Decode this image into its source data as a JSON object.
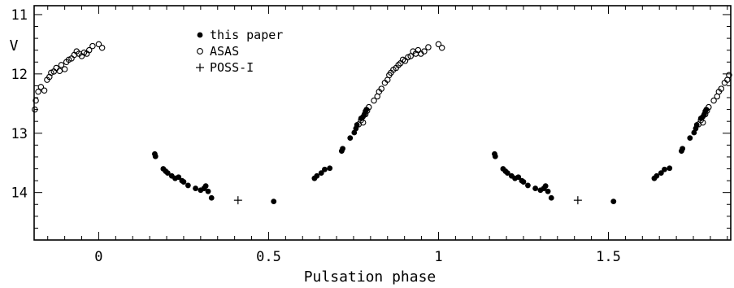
{
  "chart_data": {
    "type": "scatter",
    "title": "",
    "xlabel": "Pulsation phase",
    "ylabel": "V",
    "xlim": [
      -0.19,
      1.86
    ],
    "ylim": [
      10.85,
      14.8
    ],
    "y_inverted": true,
    "x_ticks": [
      0,
      0.5,
      1,
      1.5
    ],
    "x_tick_labels": [
      "0",
      "0.5",
      "1",
      "1.5"
    ],
    "y_ticks": [
      11,
      12,
      13,
      14
    ],
    "y_tick_labels": [
      "11",
      "12",
      "13",
      "14"
    ],
    "x_minor_step": 0.05,
    "y_minor_step": 0.2,
    "grid": false,
    "legend_position": "top-center",
    "legend": [
      {
        "label": "this paper",
        "marker": "filled-circle"
      },
      {
        "label": "ASAS",
        "marker": "open-circle"
      },
      {
        "label": "POSS-I",
        "marker": "plus"
      }
    ],
    "series": [
      {
        "name": "this paper",
        "marker": "filled-circle",
        "points": [
          {
            "x": 0.165,
            "y": 13.35
          },
          {
            "x": 0.167,
            "y": 13.39
          },
          {
            "x": 0.19,
            "y": 13.6
          },
          {
            "x": 0.197,
            "y": 13.64
          },
          {
            "x": 0.203,
            "y": 13.67
          },
          {
            "x": 0.215,
            "y": 13.72
          },
          {
            "x": 0.225,
            "y": 13.76
          },
          {
            "x": 0.235,
            "y": 13.74
          },
          {
            "x": 0.245,
            "y": 13.8
          },
          {
            "x": 0.25,
            "y": 13.82
          },
          {
            "x": 0.263,
            "y": 13.88
          },
          {
            "x": 0.285,
            "y": 13.93
          },
          {
            "x": 0.3,
            "y": 13.96
          },
          {
            "x": 0.31,
            "y": 13.93
          },
          {
            "x": 0.315,
            "y": 13.89
          },
          {
            "x": 0.322,
            "y": 13.98
          },
          {
            "x": 0.332,
            "y": 14.09
          },
          {
            "x": 0.515,
            "y": 14.15
          },
          {
            "x": 0.635,
            "y": 13.76
          },
          {
            "x": 0.642,
            "y": 13.72
          },
          {
            "x": 0.655,
            "y": 13.67
          },
          {
            "x": 0.665,
            "y": 13.61
          },
          {
            "x": 0.68,
            "y": 13.59
          },
          {
            "x": 0.715,
            "y": 13.3
          },
          {
            "x": 0.718,
            "y": 13.26
          },
          {
            "x": 0.74,
            "y": 13.08
          },
          {
            "x": 0.752,
            "y": 12.99
          },
          {
            "x": 0.757,
            "y": 12.92
          },
          {
            "x": 0.76,
            "y": 12.86
          },
          {
            "x": 0.772,
            "y": 12.75
          },
          {
            "x": 0.778,
            "y": 12.72
          },
          {
            "x": 0.782,
            "y": 12.68
          },
          {
            "x": 0.785,
            "y": 12.63
          },
          {
            "x": 0.788,
            "y": 12.6
          },
          {
            "x": 1.165,
            "y": 13.35
          },
          {
            "x": 1.167,
            "y": 13.39
          },
          {
            "x": 1.19,
            "y": 13.6
          },
          {
            "x": 1.197,
            "y": 13.64
          },
          {
            "x": 1.203,
            "y": 13.67
          },
          {
            "x": 1.215,
            "y": 13.72
          },
          {
            "x": 1.225,
            "y": 13.76
          },
          {
            "x": 1.235,
            "y": 13.74
          },
          {
            "x": 1.245,
            "y": 13.8
          },
          {
            "x": 1.25,
            "y": 13.82
          },
          {
            "x": 1.263,
            "y": 13.88
          },
          {
            "x": 1.285,
            "y": 13.93
          },
          {
            "x": 1.3,
            "y": 13.96
          },
          {
            "x": 1.31,
            "y": 13.93
          },
          {
            "x": 1.315,
            "y": 13.89
          },
          {
            "x": 1.322,
            "y": 13.98
          },
          {
            "x": 1.332,
            "y": 14.09
          },
          {
            "x": 1.515,
            "y": 14.15
          },
          {
            "x": 1.635,
            "y": 13.76
          },
          {
            "x": 1.642,
            "y": 13.72
          },
          {
            "x": 1.655,
            "y": 13.67
          },
          {
            "x": 1.665,
            "y": 13.61
          },
          {
            "x": 1.68,
            "y": 13.59
          },
          {
            "x": 1.715,
            "y": 13.3
          },
          {
            "x": 1.718,
            "y": 13.26
          },
          {
            "x": 1.74,
            "y": 13.08
          },
          {
            "x": 1.752,
            "y": 12.99
          },
          {
            "x": 1.757,
            "y": 12.92
          },
          {
            "x": 1.76,
            "y": 12.86
          },
          {
            "x": 1.772,
            "y": 12.75
          },
          {
            "x": 1.778,
            "y": 12.72
          },
          {
            "x": 1.782,
            "y": 12.68
          },
          {
            "x": 1.785,
            "y": 12.63
          },
          {
            "x": 1.788,
            "y": 12.6
          }
        ]
      },
      {
        "name": "ASAS",
        "marker": "open-circle",
        "points": [
          {
            "x": -0.188,
            "y": 12.6
          },
          {
            "x": -0.185,
            "y": 12.45
          },
          {
            "x": -0.178,
            "y": 12.3
          },
          {
            "x": -0.17,
            "y": 12.22
          },
          {
            "x": -0.16,
            "y": 12.28
          },
          {
            "x": -0.152,
            "y": 12.1
          },
          {
            "x": -0.145,
            "y": 12.05
          },
          {
            "x": -0.14,
            "y": 11.98
          },
          {
            "x": -0.132,
            "y": 11.96
          },
          {
            "x": -0.125,
            "y": 11.9
          },
          {
            "x": -0.115,
            "y": 11.95
          },
          {
            "x": -0.11,
            "y": 11.85
          },
          {
            "x": -0.1,
            "y": 11.92
          },
          {
            "x": -0.095,
            "y": 11.8
          },
          {
            "x": -0.088,
            "y": 11.76
          },
          {
            "x": -0.08,
            "y": 11.74
          },
          {
            "x": -0.072,
            "y": 11.68
          },
          {
            "x": -0.065,
            "y": 11.62
          },
          {
            "x": -0.058,
            "y": 11.66
          },
          {
            "x": -0.05,
            "y": 11.7
          },
          {
            "x": -0.043,
            "y": 11.64
          },
          {
            "x": -0.035,
            "y": 11.66
          },
          {
            "x": -0.028,
            "y": 11.6
          },
          {
            "x": -0.018,
            "y": 11.53
          },
          {
            "x": 0.0,
            "y": 11.5
          },
          {
            "x": 0.01,
            "y": 11.56
          },
          {
            "x": 0.765,
            "y": 12.85
          },
          {
            "x": 0.772,
            "y": 12.78
          },
          {
            "x": 0.778,
            "y": 12.82
          },
          {
            "x": 0.785,
            "y": 12.68
          },
          {
            "x": 0.79,
            "y": 12.62
          },
          {
            "x": 0.795,
            "y": 12.56
          },
          {
            "x": 0.81,
            "y": 12.45
          },
          {
            "x": 0.82,
            "y": 12.38
          },
          {
            "x": 0.825,
            "y": 12.3
          },
          {
            "x": 0.832,
            "y": 12.25
          },
          {
            "x": 0.842,
            "y": 12.15
          },
          {
            "x": 0.85,
            "y": 12.1
          },
          {
            "x": 0.855,
            "y": 12.02
          },
          {
            "x": 0.86,
            "y": 11.98
          },
          {
            "x": 0.867,
            "y": 11.93
          },
          {
            "x": 0.875,
            "y": 11.9
          },
          {
            "x": 0.882,
            "y": 11.85
          },
          {
            "x": 0.888,
            "y": 11.82
          },
          {
            "x": 0.895,
            "y": 11.76
          },
          {
            "x": 0.902,
            "y": 11.78
          },
          {
            "x": 0.91,
            "y": 11.72
          },
          {
            "x": 0.918,
            "y": 11.7
          },
          {
            "x": 0.925,
            "y": 11.62
          },
          {
            "x": 0.933,
            "y": 11.66
          },
          {
            "x": 0.94,
            "y": 11.6
          },
          {
            "x": 0.948,
            "y": 11.66
          },
          {
            "x": 0.958,
            "y": 11.62
          },
          {
            "x": 0.97,
            "y": 11.55
          },
          {
            "x": 1.0,
            "y": 11.5
          },
          {
            "x": 1.01,
            "y": 11.56
          },
          {
            "x": 1.765,
            "y": 12.85
          },
          {
            "x": 1.772,
            "y": 12.78
          },
          {
            "x": 1.778,
            "y": 12.82
          },
          {
            "x": 1.785,
            "y": 12.68
          },
          {
            "x": 1.79,
            "y": 12.62
          },
          {
            "x": 1.795,
            "y": 12.56
          },
          {
            "x": 1.81,
            "y": 12.45
          },
          {
            "x": 1.82,
            "y": 12.38
          },
          {
            "x": 1.825,
            "y": 12.3
          },
          {
            "x": 1.832,
            "y": 12.25
          },
          {
            "x": 1.842,
            "y": 12.15
          },
          {
            "x": 1.85,
            "y": 12.1
          },
          {
            "x": 1.855,
            "y": 12.02
          }
        ]
      },
      {
        "name": "POSS-I",
        "marker": "plus",
        "points": [
          {
            "x": 0.41,
            "y": 14.13
          },
          {
            "x": 1.41,
            "y": 14.13
          }
        ]
      }
    ]
  }
}
